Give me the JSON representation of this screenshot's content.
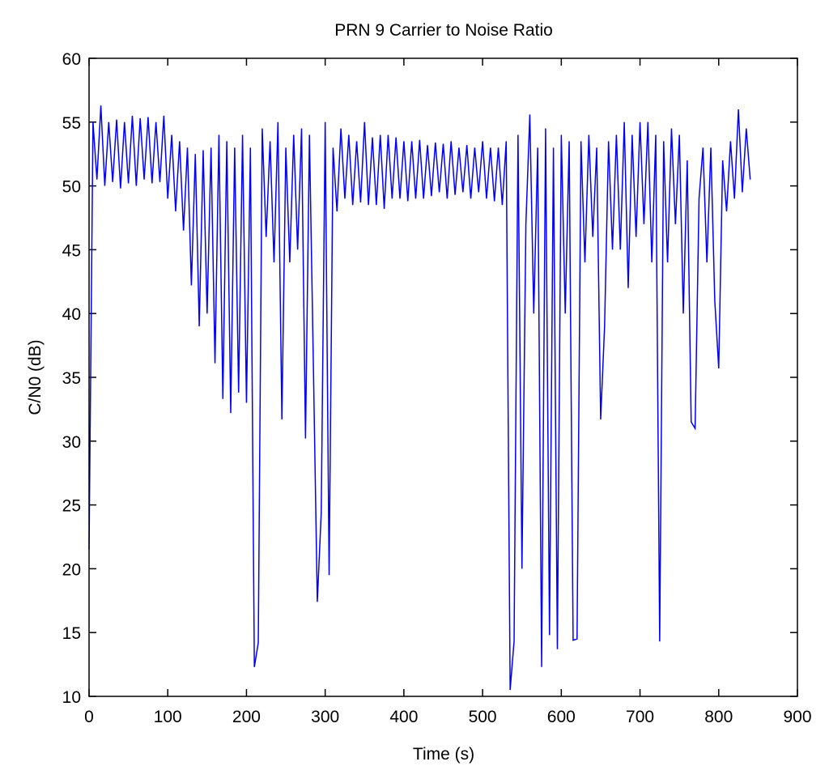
{
  "chart_data": {
    "type": "line",
    "title": "PRN 9 Carrier to Noise Ratio",
    "x_label": "Time (s)",
    "y_label": "C/N0 (dB)",
    "xlim": [
      0,
      900
    ],
    "xticks": [
      0,
      100,
      200,
      300,
      400,
      500,
      600,
      700,
      800,
      900
    ],
    "ylim": [
      10,
      60
    ],
    "yticks": [
      10,
      15,
      20,
      25,
      30,
      35,
      40,
      45,
      50,
      55,
      60
    ],
    "grid": false,
    "series": [
      {
        "color": "#0000ff",
        "x": [
          0,
          5,
          10,
          15,
          20,
          25,
          30,
          35,
          40,
          45,
          50,
          55,
          60,
          65,
          70,
          75,
          80,
          85,
          90,
          95,
          100,
          105,
          110,
          115,
          120,
          125,
          130,
          135,
          140,
          145,
          150,
          155,
          160,
          165,
          170,
          175,
          180,
          185,
          190,
          195,
          200,
          205,
          210,
          215,
          220,
          225,
          230,
          235,
          240,
          245,
          250,
          255,
          260,
          265,
          270,
          275,
          280,
          285,
          290,
          295,
          300,
          305,
          310,
          315,
          320,
          325,
          330,
          335,
          340,
          345,
          350,
          355,
          360,
          365,
          370,
          375,
          380,
          385,
          390,
          395,
          400,
          405,
          410,
          415,
          420,
          425,
          430,
          435,
          440,
          445,
          450,
          455,
          460,
          465,
          470,
          475,
          480,
          485,
          490,
          495,
          500,
          505,
          510,
          515,
          520,
          525,
          530,
          535,
          540,
          545,
          550,
          555,
          560,
          565,
          570,
          575,
          580,
          585,
          590,
          595,
          600,
          605,
          610,
          615,
          620,
          625,
          630,
          635,
          640,
          645,
          650,
          655,
          660,
          665,
          670,
          675,
          680,
          685,
          690,
          695,
          700,
          705,
          710,
          715,
          720,
          725,
          730,
          735,
          740,
          745,
          750,
          755,
          760,
          765,
          770,
          775,
          780,
          785,
          790,
          795,
          800,
          805,
          810,
          815,
          820,
          825,
          830,
          835,
          840
        ],
        "values": [
          21.5,
          55,
          50.5,
          56.3,
          50,
          55,
          50.3,
          55.2,
          49.8,
          55,
          50.2,
          55.5,
          50,
          55.3,
          50.5,
          55.4,
          50.2,
          55,
          50.3,
          55.5,
          49,
          54,
          48,
          53.5,
          46.5,
          53,
          42.2,
          52.5,
          39,
          52.8,
          40,
          53,
          36.1,
          54,
          33.3,
          53.5,
          32.2,
          53,
          33.8,
          54,
          33,
          53,
          12.3,
          14.2,
          54.5,
          46,
          53.5,
          44,
          55,
          31.7,
          53,
          44,
          54,
          45,
          54.5,
          30.2,
          54,
          36,
          17.4,
          24.4,
          55,
          19.5,
          53,
          48,
          54.5,
          49,
          54,
          48.5,
          53.5,
          48.7,
          55,
          48.5,
          53.8,
          48.5,
          54,
          48.2,
          54,
          49,
          53.8,
          49,
          53.5,
          48.8,
          53.5,
          49,
          53.6,
          49,
          53.2,
          49.2,
          53.4,
          49.5,
          53.3,
          49,
          53.5,
          49.3,
          53,
          49.5,
          53.2,
          49,
          53,
          49.5,
          53.5,
          49,
          53,
          48.8,
          53,
          48.5,
          53.5,
          10.5,
          14.3,
          54,
          20,
          47,
          55.6,
          40,
          53,
          12.3,
          54.5,
          14.8,
          53,
          13.7,
          54,
          40,
          53.5,
          14.4,
          14.5,
          53.5,
          44,
          54,
          46,
          53,
          31.7,
          39,
          53.5,
          45,
          54,
          45,
          55,
          42,
          54,
          46,
          55,
          47,
          55,
          44,
          54,
          14.3,
          53.5,
          44,
          54.5,
          47,
          54,
          40,
          52,
          31.5,
          31,
          49,
          53,
          44,
          53,
          41,
          35.7,
          52,
          48,
          53.5,
          49,
          56,
          49.5,
          54.5,
          50.5
        ]
      }
    ]
  }
}
